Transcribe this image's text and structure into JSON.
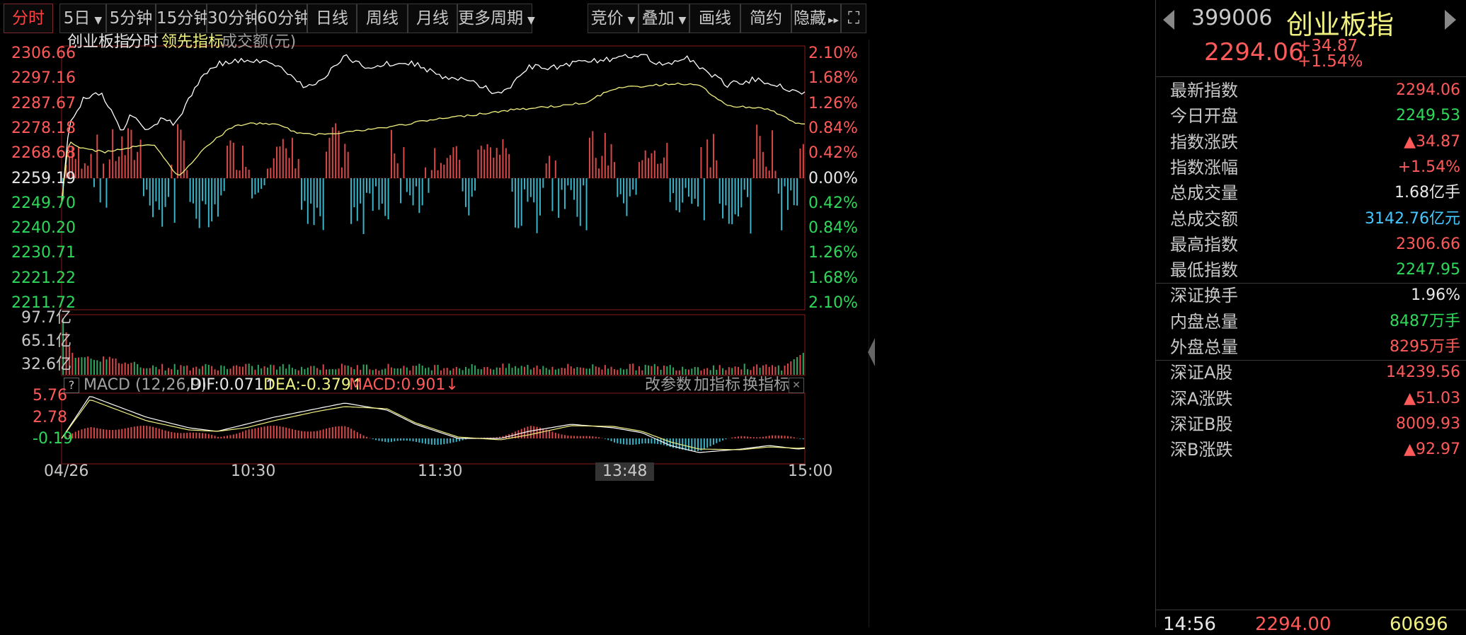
{
  "toolbar": {
    "buttons": [
      "分时",
      "5日",
      "5分钟",
      "15分钟",
      "30分钟",
      "60分钟",
      "日线",
      "周线",
      "月线",
      "更多周期"
    ],
    "right_buttons": [
      "竞价",
      "叠加",
      "画线",
      "简约",
      "隐藏"
    ],
    "hide_arrows": "▸▸",
    "fullscreen": "⛶"
  },
  "legend": {
    "index": "创业板指",
    "time": "分时",
    "leading": "领先指标",
    "amount": "成交额(元)"
  },
  "price_axis": [
    "2306.66",
    "2297.16",
    "2287.67",
    "2278.18",
    "2268.68",
    "2259.19",
    "2249.70",
    "2240.20",
    "2230.71",
    "2221.22",
    "2211.72"
  ],
  "pct_axis": [
    "2.10%",
    "1.68%",
    "1.26%",
    "0.84%",
    "0.42%",
    "0.00%",
    "0.42%",
    "0.84%",
    "1.26%",
    "1.68%",
    "2.10%"
  ],
  "volume_axis": [
    "97.7亿",
    "65.1亿",
    "32.6亿"
  ],
  "macd": {
    "help": "?",
    "title": "MACD (12,26,9)",
    "dif": "DIF:0.071↑",
    "dea": "DEA:-0.379↑",
    "macd": "MACD:0.901↓",
    "actions": [
      "改参数",
      "加指标",
      "换指标"
    ],
    "close": "✕",
    "axis": [
      "5.76",
      "2.78",
      "-0.19"
    ]
  },
  "time_axis": [
    "04/26",
    "10:30",
    "11:30",
    "13:48",
    "15:00"
  ],
  "colors": {
    "up": "#ff5a5a",
    "down": "#2ed85a",
    "price_line": "#ffffff",
    "avg_line": "#f0f080",
    "bar_up": "#d94848",
    "bar_down": "#3ab4c8"
  },
  "panel": {
    "code": "399006",
    "name": "创业板指",
    "price": "2294.06",
    "change": "+34.87",
    "change_pct": "+1.54%",
    "rows": [
      {
        "k": "最新指数",
        "v": "2294.06",
        "c": "red"
      },
      {
        "k": "今日开盘",
        "v": "2249.53",
        "c": "green"
      },
      {
        "k": "指数涨跌",
        "v": "▲34.87",
        "c": "red"
      },
      {
        "k": "指数涨幅",
        "v": "+1.54%",
        "c": "red"
      },
      {
        "k": "总成交量",
        "v": "1.68亿手",
        "c": "white"
      },
      {
        "k": "总成交额",
        "v": "3142.76亿元",
        "c": "cyan"
      },
      {
        "k": "最高指数",
        "v": "2306.66",
        "c": "red"
      },
      {
        "k": "最低指数",
        "v": "2247.95",
        "c": "green"
      },
      {
        "k": "深证换手",
        "v": "1.96%",
        "c": "white"
      },
      {
        "k": "内盘总量",
        "v": "8487万手",
        "c": "green"
      },
      {
        "k": "外盘总量",
        "v": "8295万手",
        "c": "red"
      },
      {
        "k": "深证A股",
        "v": "14239.56",
        "c": "red"
      },
      {
        "k": "深A涨跌",
        "v": "▲51.03",
        "c": "red"
      },
      {
        "k": "深证B股",
        "v": "8009.93",
        "c": "red"
      },
      {
        "k": "深B涨跌",
        "v": "▲92.97",
        "c": "red"
      }
    ],
    "tick_row": {
      "time": "14:56",
      "price": "2294.00",
      "vol": "60696"
    }
  }
}
